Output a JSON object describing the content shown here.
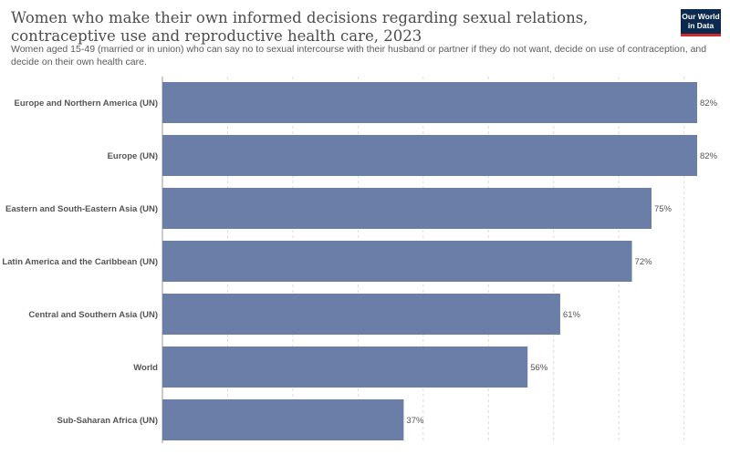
{
  "header": {
    "title": "Women who make their own informed decisions regarding sexual relations, contraceptive use and reproductive health care, 2023",
    "subtitle": "Women aged 15-49 (married or in union) who can say no to sexual intercourse with their husband or partner if they do not want, decide on use of contraception, and decide on their own health care."
  },
  "logo": {
    "line1": "Our World",
    "line2": "in Data",
    "bg": "#0c2a4f",
    "accent": "#cf2b2b"
  },
  "chart_data": {
    "type": "bar",
    "orientation": "horizontal",
    "categories": [
      "Europe and Northern America (UN)",
      "Europe (UN)",
      "Eastern and South-Eastern Asia (UN)",
      "Latin America and the Caribbean (UN)",
      "Central and Southern Asia (UN)",
      "World",
      "Sub-Saharan Africa (UN)"
    ],
    "values": [
      82,
      82,
      75,
      72,
      61,
      56,
      37
    ],
    "value_labels": [
      "82%",
      "82%",
      "75%",
      "72%",
      "61%",
      "56%",
      "37%"
    ],
    "unit": "%",
    "xlim": [
      0,
      82
    ],
    "grid": true,
    "bar_color": "#6a7ea8"
  }
}
